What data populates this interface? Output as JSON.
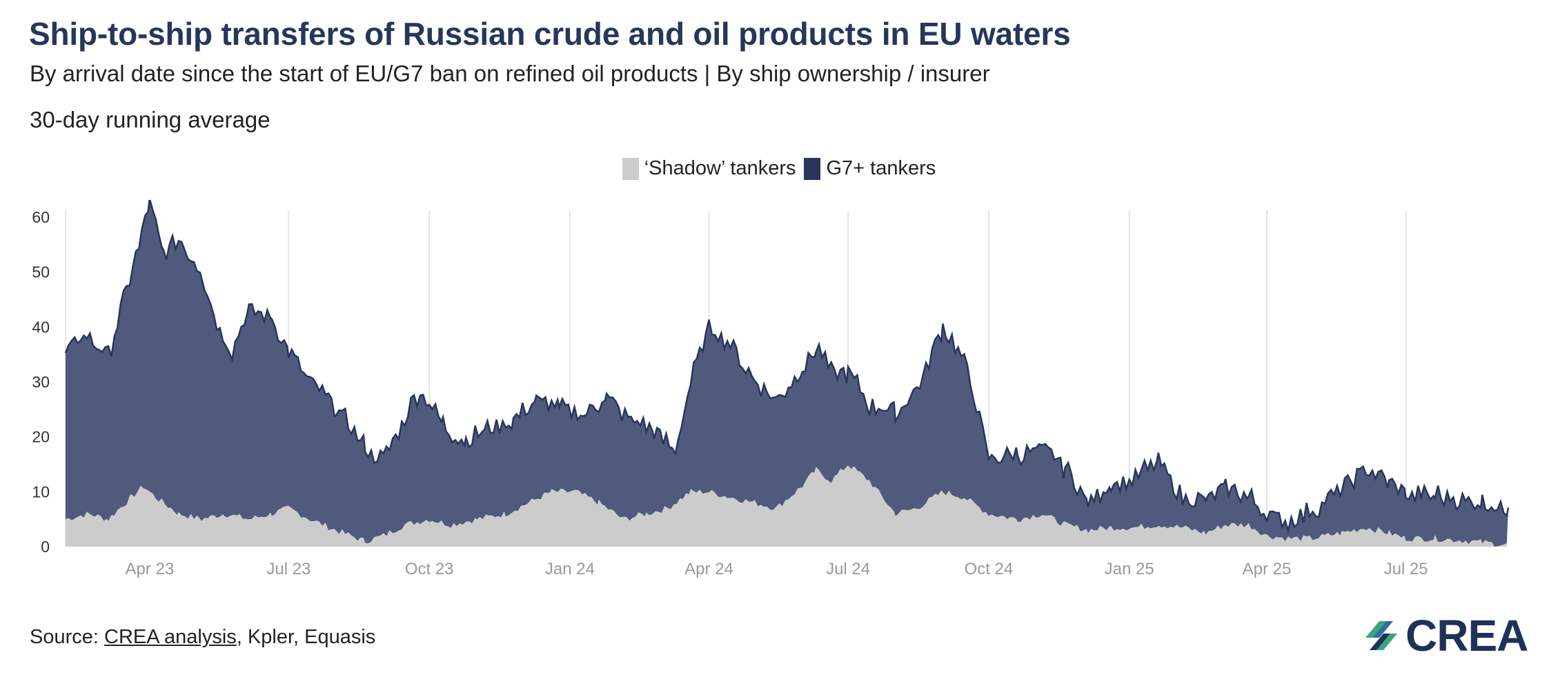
{
  "header": {
    "title": "Ship-to-ship transfers of Russian crude and oil products in EU waters",
    "subtitle": "By arrival date since the start of EU/G7 ban on refined oil products | By ship ownership / insurer",
    "note": "30-day running average"
  },
  "legend": {
    "items": [
      {
        "label": "‘Shadow’ tankers",
        "color": "#cccccc"
      },
      {
        "label": "G7+ tankers",
        "color": "#27365a"
      }
    ]
  },
  "footer": {
    "source_prefix": "Source: ",
    "source_link": "CREA analysis",
    "source_rest": ", Kpler, Equasis",
    "logo_text": "CREA"
  },
  "colors": {
    "shadow_fill": "#cccccc",
    "g7_fill": "#4f5a7c",
    "g7_line": "#27365a",
    "gridline": "#e6e6e6",
    "tick_label": "#999999"
  },
  "chart_data": {
    "type": "area",
    "stacked": true,
    "title": "Ship-to-ship transfers of Russian crude and oil products in EU waters",
    "xlabel": "",
    "ylabel": "",
    "ylim": [
      0,
      60
    ],
    "yticks": [
      0,
      10,
      20,
      30,
      40,
      50,
      60
    ],
    "xlim": [
      "2023-02-05",
      "2025-09-06"
    ],
    "x_ticks": [
      {
        "label": "Apr 23",
        "date": "2023-04-01"
      },
      {
        "label": "Jul 23",
        "date": "2023-07-01"
      },
      {
        "label": "Oct 23",
        "date": "2023-10-01"
      },
      {
        "label": "Jan 24",
        "date": "2024-01-01"
      },
      {
        "label": "Apr 24",
        "date": "2024-04-01"
      },
      {
        "label": "Jul 24",
        "date": "2024-07-01"
      },
      {
        "label": "Oct 24",
        "date": "2024-10-01"
      },
      {
        "label": "Jan 25",
        "date": "2025-01-01"
      },
      {
        "label": "Apr 25",
        "date": "2025-04-01"
      },
      {
        "label": "Jul 25",
        "date": "2025-07-01"
      }
    ],
    "grid": {
      "x": true,
      "y": false
    },
    "legend_position": "top-center",
    "series": [
      {
        "name": "‘Shadow’ tankers",
        "points": [
          [
            "2023-02-05",
            5
          ],
          [
            "2023-02-20",
            6
          ],
          [
            "2023-03-05",
            5
          ],
          [
            "2023-03-20",
            9
          ],
          [
            "2023-03-28",
            11
          ],
          [
            "2023-04-05",
            9
          ],
          [
            "2023-04-20",
            6
          ],
          [
            "2023-05-05",
            5
          ],
          [
            "2023-05-20",
            6
          ],
          [
            "2023-06-05",
            5
          ],
          [
            "2023-06-20",
            6
          ],
          [
            "2023-07-01",
            7
          ],
          [
            "2023-07-15",
            5
          ],
          [
            "2023-08-01",
            3
          ],
          [
            "2023-08-20",
            1
          ],
          [
            "2023-09-01",
            2
          ],
          [
            "2023-09-15",
            4
          ],
          [
            "2023-10-01",
            5
          ],
          [
            "2023-10-15",
            4
          ],
          [
            "2023-11-01",
            5
          ],
          [
            "2023-11-20",
            6
          ],
          [
            "2023-12-05",
            8
          ],
          [
            "2023-12-20",
            10
          ],
          [
            "2024-01-05",
            10
          ],
          [
            "2024-01-20",
            8
          ],
          [
            "2024-02-05",
            5
          ],
          [
            "2024-02-20",
            6
          ],
          [
            "2024-03-05",
            7
          ],
          [
            "2024-03-20",
            10
          ],
          [
            "2024-04-01",
            10
          ],
          [
            "2024-04-15",
            9
          ],
          [
            "2024-05-01",
            8
          ],
          [
            "2024-05-15",
            7
          ],
          [
            "2024-06-01",
            11
          ],
          [
            "2024-06-10",
            14
          ],
          [
            "2024-06-20",
            12
          ],
          [
            "2024-07-01",
            15
          ],
          [
            "2024-07-15",
            12
          ],
          [
            "2024-08-01",
            6
          ],
          [
            "2024-08-15",
            7
          ],
          [
            "2024-09-01",
            10
          ],
          [
            "2024-09-15",
            9
          ],
          [
            "2024-10-01",
            6
          ],
          [
            "2024-10-20",
            5
          ],
          [
            "2024-11-05",
            6
          ],
          [
            "2024-11-20",
            4
          ],
          [
            "2024-12-05",
            3
          ],
          [
            "2024-12-20",
            3.5
          ],
          [
            "2025-01-05",
            3.5
          ],
          [
            "2025-01-20",
            4
          ],
          [
            "2025-02-05",
            3.5
          ],
          [
            "2025-02-20",
            2.5
          ],
          [
            "2025-03-05",
            4
          ],
          [
            "2025-03-20",
            4
          ],
          [
            "2025-04-01",
            2
          ],
          [
            "2025-04-15",
            1.5
          ],
          [
            "2025-05-01",
            1.5
          ],
          [
            "2025-05-20",
            2.5
          ],
          [
            "2025-06-05",
            3.5
          ],
          [
            "2025-06-20",
            2.5
          ],
          [
            "2025-07-01",
            1.5
          ],
          [
            "2025-07-20",
            1.5
          ],
          [
            "2025-08-05",
            1.2
          ],
          [
            "2025-08-20",
            0.8
          ],
          [
            "2025-09-06",
            0.3
          ]
        ]
      },
      {
        "name": "G7+ tankers",
        "points": [
          [
            "2023-02-05",
            30
          ],
          [
            "2023-02-15",
            33
          ],
          [
            "2023-02-25",
            31
          ],
          [
            "2023-03-05",
            30
          ],
          [
            "2023-03-15",
            38
          ],
          [
            "2023-03-25",
            45
          ],
          [
            "2023-04-01",
            52
          ],
          [
            "2023-04-10",
            45
          ],
          [
            "2023-04-20",
            50
          ],
          [
            "2023-05-05",
            45
          ],
          [
            "2023-05-15",
            35
          ],
          [
            "2023-05-25",
            30
          ],
          [
            "2023-06-05",
            38
          ],
          [
            "2023-06-20",
            36
          ],
          [
            "2023-07-01",
            28
          ],
          [
            "2023-07-15",
            25
          ],
          [
            "2023-08-01",
            22
          ],
          [
            "2023-08-20",
            17
          ],
          [
            "2023-09-01",
            14
          ],
          [
            "2023-09-15",
            20
          ],
          [
            "2023-09-25",
            24
          ],
          [
            "2023-10-10",
            18
          ],
          [
            "2023-10-25",
            15
          ],
          [
            "2023-11-10",
            16
          ],
          [
            "2023-11-25",
            17
          ],
          [
            "2023-12-10",
            18
          ],
          [
            "2023-12-25",
            15
          ],
          [
            "2024-01-10",
            14
          ],
          [
            "2024-01-25",
            20
          ],
          [
            "2024-02-10",
            18
          ],
          [
            "2024-02-25",
            15
          ],
          [
            "2024-03-10",
            10
          ],
          [
            "2024-03-20",
            20
          ],
          [
            "2024-04-01",
            30
          ],
          [
            "2024-04-15",
            28
          ],
          [
            "2024-05-01",
            22
          ],
          [
            "2024-05-15",
            20
          ],
          [
            "2024-06-01",
            22
          ],
          [
            "2024-06-10",
            22
          ],
          [
            "2024-06-20",
            20
          ],
          [
            "2024-07-01",
            17
          ],
          [
            "2024-07-15",
            13
          ],
          [
            "2024-08-01",
            18
          ],
          [
            "2024-08-15",
            22
          ],
          [
            "2024-09-01",
            30
          ],
          [
            "2024-09-15",
            25
          ],
          [
            "2024-10-01",
            10
          ],
          [
            "2024-10-20",
            12
          ],
          [
            "2024-11-05",
            12
          ],
          [
            "2024-11-20",
            10
          ],
          [
            "2024-12-05",
            5
          ],
          [
            "2024-12-20",
            8
          ],
          [
            "2025-01-05",
            9
          ],
          [
            "2025-01-20",
            12
          ],
          [
            "2025-02-05",
            5
          ],
          [
            "2025-02-20",
            6
          ],
          [
            "2025-03-05",
            7
          ],
          [
            "2025-03-20",
            5
          ],
          [
            "2025-04-01",
            4
          ],
          [
            "2025-04-15",
            3
          ],
          [
            "2025-05-01",
            5
          ],
          [
            "2025-05-20",
            8
          ],
          [
            "2025-06-05",
            11
          ],
          [
            "2025-06-20",
            9
          ],
          [
            "2025-07-01",
            8
          ],
          [
            "2025-07-20",
            8
          ],
          [
            "2025-08-05",
            7.5
          ],
          [
            "2025-08-20",
            7
          ],
          [
            "2025-09-06",
            6.5
          ]
        ]
      }
    ]
  }
}
